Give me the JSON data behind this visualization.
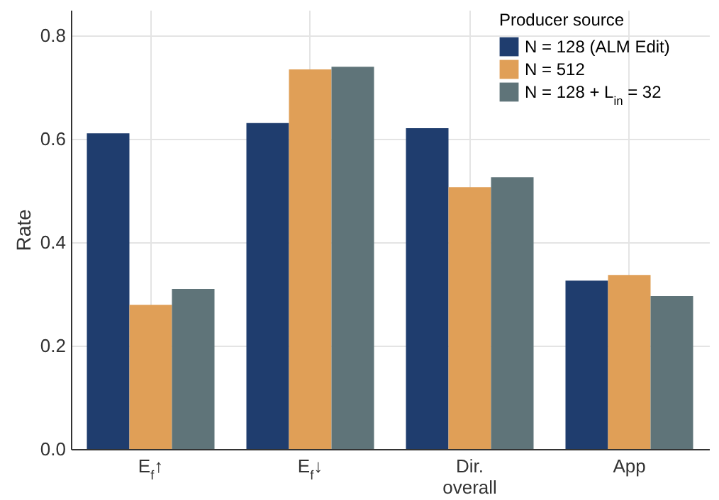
{
  "chart_data": {
    "type": "bar",
    "ylabel": "Rate",
    "legend_title": "Producer source",
    "categories": [
      "E$_{f}$↑",
      "E$_{f}$↓",
      "Dir.\noverall",
      "App"
    ],
    "series": [
      {
        "name": "N = 128 (ALM Edit)",
        "color": "#1f3d6e",
        "values": [
          0.611,
          0.631,
          0.621,
          0.326
        ]
      },
      {
        "name": "N = 512",
        "color": "#e09f57",
        "values": [
          0.279,
          0.735,
          0.507,
          0.337
        ]
      },
      {
        "name": "N = 128 + L$_{in}$ = 32",
        "color": "#5f7479",
        "values": [
          0.31,
          0.74,
          0.526,
          0.296
        ]
      }
    ],
    "ylim": [
      0,
      0.85
    ],
    "yticks": [
      {
        "value": 0,
        "label": "0.0"
      },
      0.2,
      0.4,
      0.6,
      0.8
    ],
    "grid": true,
    "legend": "top right"
  }
}
